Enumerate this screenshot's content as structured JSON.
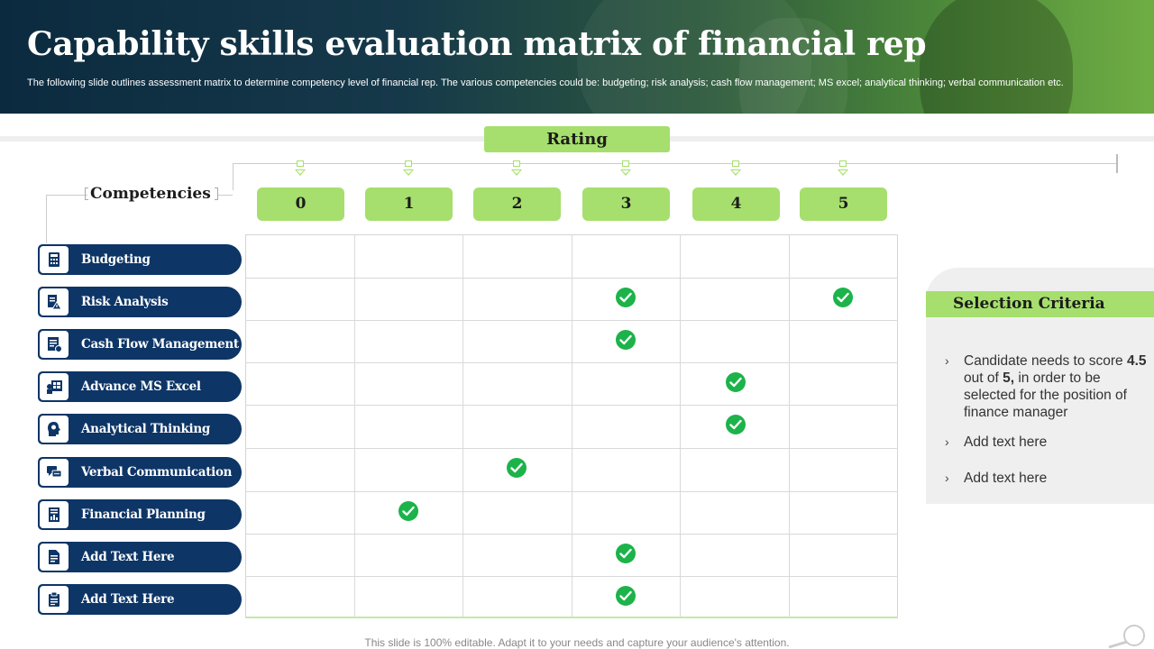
{
  "header": {
    "title": "Capability skills evaluation matrix of financial rep",
    "subtitle": "The following slide outlines assessment matrix to determine competency level of financial rep. The various competencies could be: budgeting; risk analysis; cash flow management; MS excel; analytical thinking; verbal communication etc."
  },
  "rating": {
    "label": "Rating",
    "levels": [
      "0",
      "1",
      "2",
      "3",
      "4",
      "5"
    ]
  },
  "competencies": {
    "title": "Competencies",
    "items": [
      {
        "label": "Budgeting",
        "icon": "calculator-icon",
        "ratings": []
      },
      {
        "label": "Risk Analysis",
        "icon": "risk-document-icon",
        "ratings": [
          3,
          5
        ]
      },
      {
        "label": "Cash Flow Management",
        "icon": "cash-flow-icon",
        "ratings": [
          3
        ]
      },
      {
        "label": "Advance MS Excel",
        "icon": "spreadsheet-icon",
        "ratings": [
          4
        ]
      },
      {
        "label": "Analytical Thinking",
        "icon": "head-idea-icon",
        "ratings": [
          4
        ]
      },
      {
        "label": "Verbal Communication",
        "icon": "chat-bubble-icon",
        "ratings": [
          2
        ]
      },
      {
        "label": "Financial Planning",
        "icon": "finance-report-icon",
        "ratings": [
          1
        ]
      },
      {
        "label": "Add Text Here",
        "icon": "document-icon",
        "ratings": [
          3
        ]
      },
      {
        "label": "Add Text Here",
        "icon": "clipboard-icon",
        "ratings": [
          3
        ]
      }
    ]
  },
  "selection_criteria": {
    "title": "Selection Criteria",
    "items": [
      {
        "pre": "Candidate needs to score ",
        "b1": "4.5",
        "mid": " out of ",
        "b2": "5,",
        "post": " in order to be selected for the position of finance manager"
      },
      {
        "text": "Add text here"
      },
      {
        "text": "Add text here"
      }
    ]
  },
  "footer": {
    "text": "This slide is 100% editable. Adapt it to your needs and capture your audience's attention."
  },
  "colors": {
    "accent_green": "#a6df6d",
    "navy": "#0d3566",
    "check_green": "#1cb34a"
  }
}
